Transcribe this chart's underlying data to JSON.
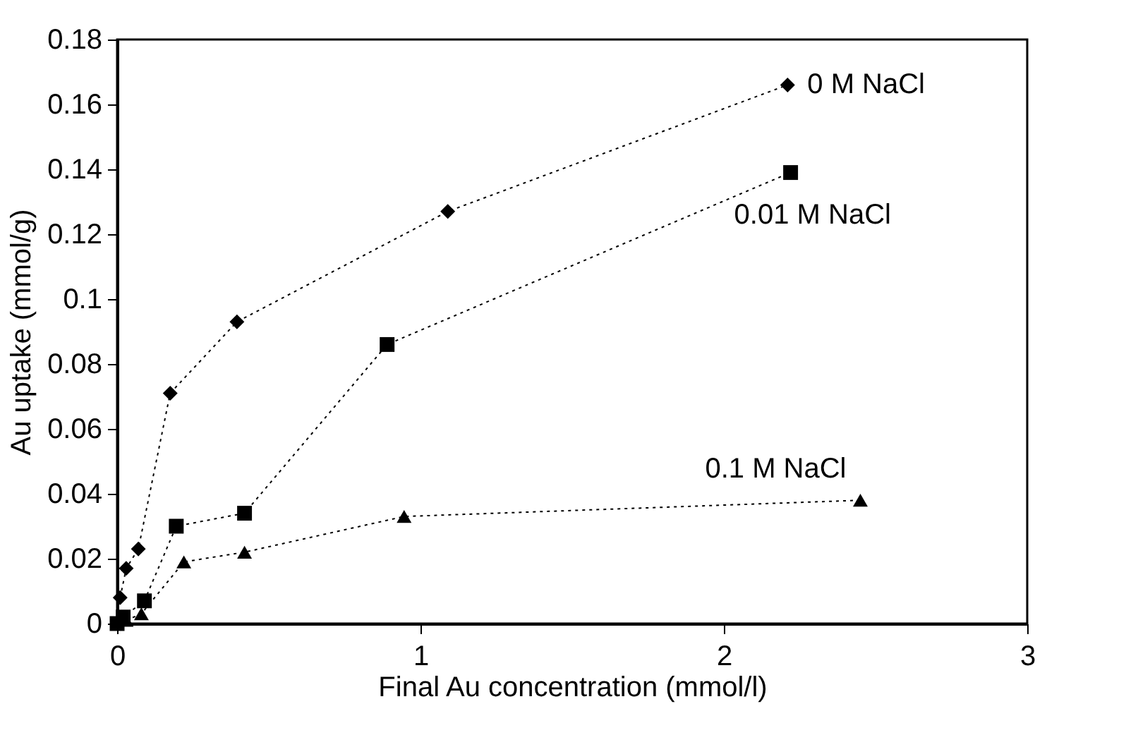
{
  "chart_data": {
    "type": "scatter",
    "xlabel": "Final Au concentration (mmol/l)",
    "ylabel": "Au uptake (mmol/g)",
    "xlim": [
      0,
      3
    ],
    "xticks": [
      0,
      1,
      2,
      3
    ],
    "ylim": [
      0,
      0.18
    ],
    "yticks": [
      0,
      0.02,
      0.04,
      0.06,
      0.08,
      0.1,
      0.12,
      0.14,
      0.16,
      0.18
    ],
    "grid": false,
    "legend": false,
    "line_style": "dotted",
    "series": [
      {
        "name": "0 M NaCl",
        "color": "#000000",
        "marker": "diamond",
        "x": [
          0.01,
          0.03,
          0.07,
          0.175,
          0.395,
          1.09,
          2.21
        ],
        "values": [
          0.008,
          0.017,
          0.023,
          0.071,
          0.093,
          0.127,
          0.166
        ]
      },
      {
        "name": "0.01 M NaCl",
        "color": "#000000",
        "marker": "square",
        "x": [
          0,
          0.02,
          0.09,
          0.195,
          0.42,
          0.89,
          2.22
        ],
        "values": [
          0,
          0.002,
          0.007,
          0.03,
          0.034,
          0.086,
          0.139
        ]
      },
      {
        "name": "0.1 M NaCl",
        "color": "#000000",
        "marker": "triangle",
        "x": [
          0.03,
          0.08,
          0.22,
          0.42,
          0.946,
          2.45
        ],
        "values": [
          0.001,
          0.003,
          0.019,
          0.022,
          0.033,
          0.038
        ]
      }
    ]
  }
}
